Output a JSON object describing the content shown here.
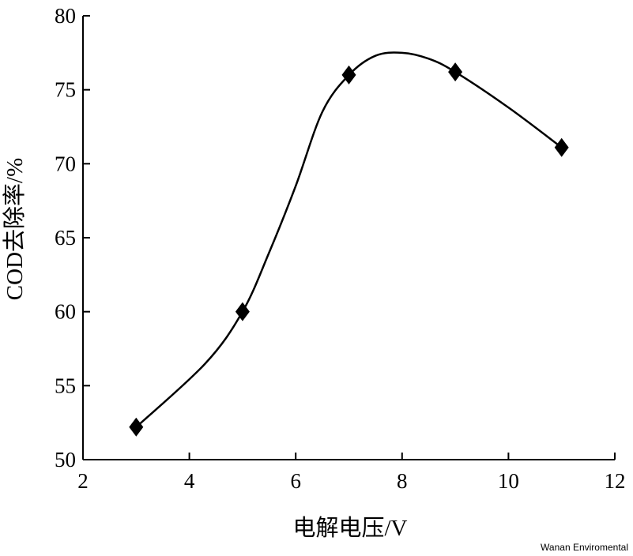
{
  "chart_data": {
    "type": "line",
    "xlabel": "电解电压/V",
    "ylabel": "COD去除率/%",
    "xlim": [
      2,
      12
    ],
    "ylim": [
      50,
      80
    ],
    "xticks": [
      2,
      4,
      6,
      8,
      10,
      12
    ],
    "yticks": [
      50,
      55,
      60,
      65,
      70,
      75,
      80
    ],
    "grid": false,
    "series": [
      {
        "x": [
          3,
          5,
          7,
          9,
          11
        ],
        "y": [
          52.2,
          60.0,
          76.0,
          76.2,
          71.1
        ],
        "marker": "diamond",
        "color": "#000000",
        "curve": [
          [
            3.0,
            52.2
          ],
          [
            4.3,
            56.5
          ],
          [
            5.0,
            60.0
          ],
          [
            5.5,
            64.0
          ],
          [
            6.0,
            68.5
          ],
          [
            6.5,
            73.5
          ],
          [
            7.0,
            76.0
          ],
          [
            7.5,
            77.3
          ],
          [
            8.0,
            77.5
          ],
          [
            8.5,
            77.1
          ],
          [
            9.0,
            76.2
          ],
          [
            10.0,
            73.8
          ],
          [
            11.0,
            71.1
          ]
        ]
      }
    ]
  },
  "watermark": "Wanan Enviromental"
}
